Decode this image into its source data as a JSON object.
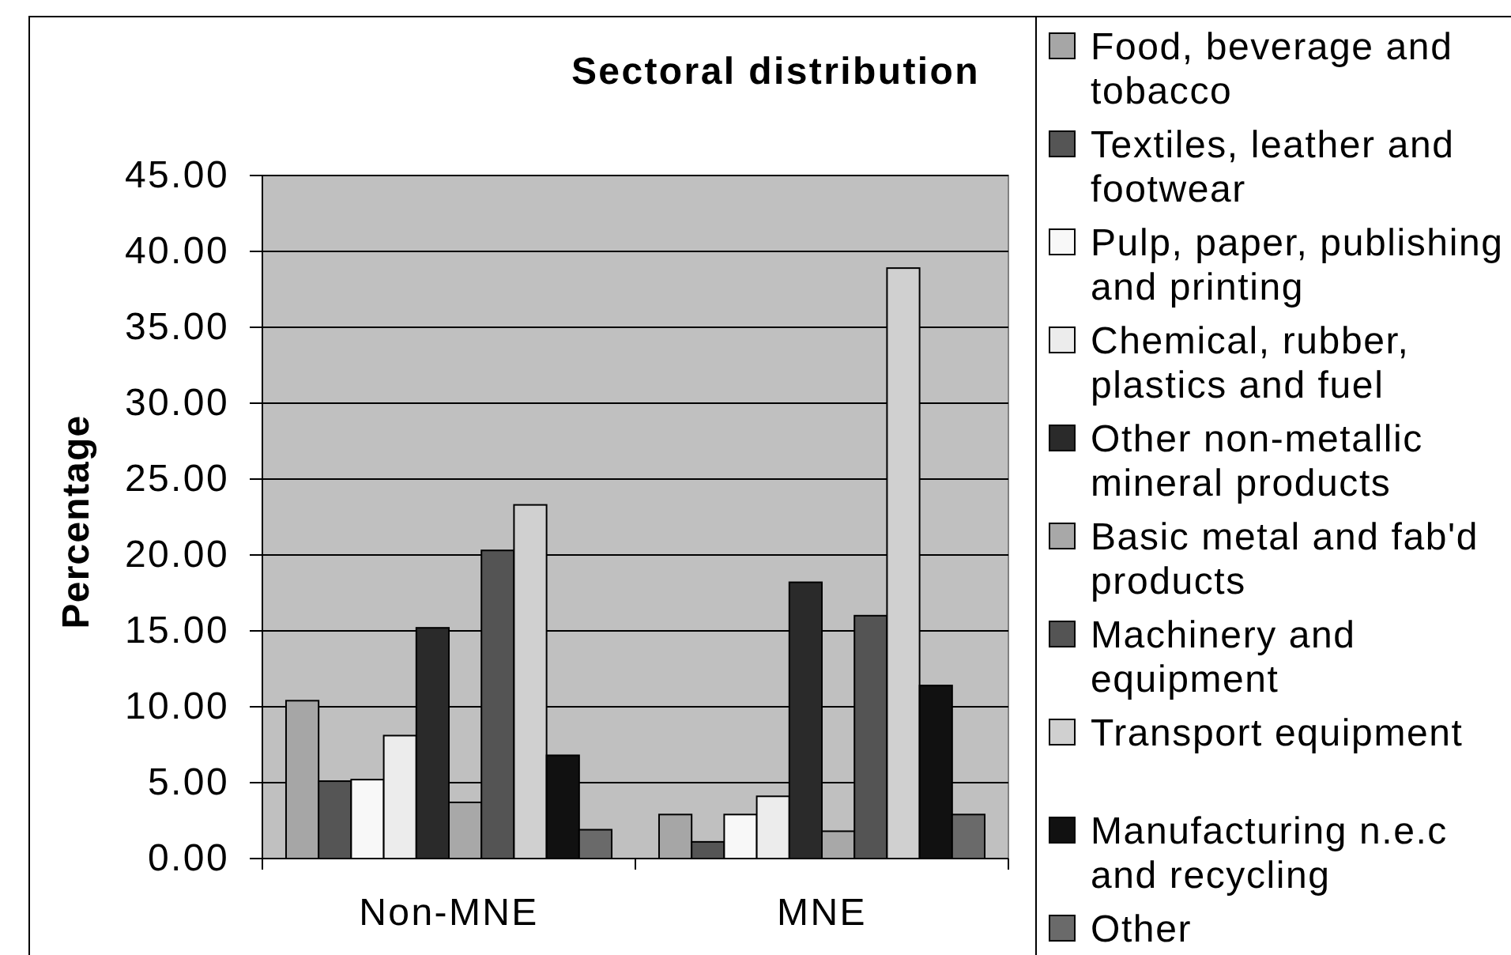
{
  "chart_data": {
    "type": "bar",
    "title": "Sectoral distribution",
    "ylabel": "Percentage",
    "categories": [
      "Non-MNE",
      "MNE"
    ],
    "series": [
      {
        "name": "Food, beverage and tobacco",
        "color": "#a6a6a6",
        "values": [
          10.4,
          2.9
        ]
      },
      {
        "name": "Textiles, leather and footwear",
        "color": "#555555",
        "values": [
          5.1,
          1.1
        ]
      },
      {
        "name": "Pulp, paper, publishing and printing",
        "color": "#f8f8f8",
        "values": [
          5.2,
          2.9
        ]
      },
      {
        "name": "Chemical, rubber, plastics and fuel",
        "color": "#ececec",
        "values": [
          8.1,
          4.1
        ]
      },
      {
        "name": "Other non-metallic mineral products",
        "color": "#2a2a2a",
        "values": [
          15.2,
          18.2
        ]
      },
      {
        "name": "Basic metal and fab'd products",
        "color": "#a8a8a8",
        "values": [
          3.7,
          1.8
        ]
      },
      {
        "name": "Machinery and equipment",
        "color": "#545454",
        "values": [
          20.3,
          16.0
        ]
      },
      {
        "name": "Transport equipment",
        "color": "#d0d0d0",
        "values": [
          23.3,
          38.9
        ]
      },
      {
        "name": "Manufacturing n.e.c and recycling",
        "color": "#111111",
        "values": [
          6.8,
          11.4
        ]
      },
      {
        "name": "Other",
        "color": "#6a6a6a",
        "values": [
          1.9,
          2.9
        ]
      }
    ],
    "ylim": [
      0,
      45
    ],
    "yticks": [
      {
        "value": 0,
        "label": "0.00"
      },
      {
        "value": 5,
        "label": "5.00"
      },
      {
        "value": 10,
        "label": "10.00"
      },
      {
        "value": 15,
        "label": "15.00"
      },
      {
        "value": 20,
        "label": "20.00"
      },
      {
        "value": 25,
        "label": "25.00"
      },
      {
        "value": 30,
        "label": "30.00"
      },
      {
        "value": 35,
        "label": "35.00"
      },
      {
        "value": 40,
        "label": "40.00"
      },
      {
        "value": 45,
        "label": "45.00"
      }
    ],
    "grid": "y",
    "legend": "right"
  }
}
